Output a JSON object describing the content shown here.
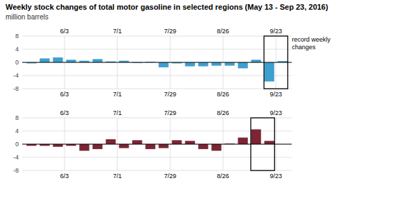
{
  "chart_data": [
    {
      "type": "bar",
      "title": "Weekly stock changes of total motor gasoline in selected regions (May 13 - Sep 23, 2016)",
      "subtitle": "million barrels",
      "annotation": "record weekly\nchanges",
      "categories": [
        null,
        null,
        null,
        "6/3",
        null,
        null,
        null,
        "7/1",
        null,
        null,
        null,
        "7/29",
        null,
        null,
        null,
        "8/26",
        null,
        null,
        null,
        "9/23"
      ],
      "values": [
        -0.3,
        1.2,
        1.5,
        0.8,
        0.5,
        1.0,
        0.3,
        0.5,
        -0.2,
        0.2,
        -1.5,
        -0.3,
        -1.2,
        -1.2,
        -1.0,
        -1.0,
        -1.8,
        0.8,
        -5.8,
        0.4
      ],
      "color": "#3d9fcf",
      "ylim": [
        -8,
        8
      ],
      "yticks": [
        -8,
        -4,
        0,
        4,
        8
      ],
      "grid": true,
      "highlight": [
        18,
        19
      ]
    },
    {
      "type": "bar",
      "categories": [
        null,
        null,
        null,
        "6/3",
        null,
        null,
        null,
        "7/1",
        null,
        null,
        null,
        "7/29",
        null,
        null,
        null,
        "8/26",
        null,
        null,
        null,
        "9/23"
      ],
      "values": [
        -0.5,
        -0.5,
        -0.8,
        -0.5,
        -2.0,
        -1.5,
        1.5,
        -1.2,
        1.2,
        -1.5,
        -1.2,
        1.2,
        1.0,
        -1.5,
        -2.0,
        0.2,
        2.0,
        4.5,
        1.0,
        null
      ],
      "color": "#7b2535",
      "ylim": [
        -8,
        8
      ],
      "yticks": [
        -8,
        -4,
        0,
        4,
        8
      ],
      "grid": true,
      "highlight": [
        17,
        18
      ]
    }
  ]
}
